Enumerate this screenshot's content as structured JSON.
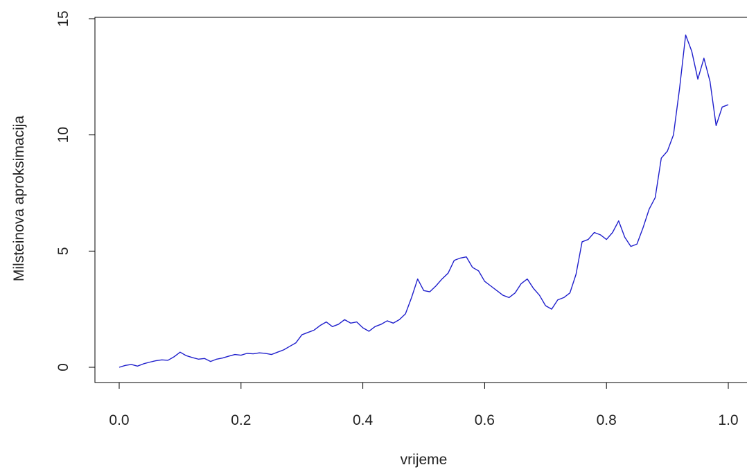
{
  "chart_data": {
    "type": "line",
    "title": "",
    "xlabel": "vrijeme",
    "ylabel": "Milsteinova aproksimacija",
    "xlim": [
      0.0,
      1.0
    ],
    "ylim": [
      0,
      15
    ],
    "xticks": [
      "0.0",
      "0.2",
      "0.4",
      "0.6",
      "0.8",
      "1.0"
    ],
    "yticks": [
      "0",
      "5",
      "10",
      "15"
    ],
    "grid": false,
    "legend": "none",
    "series": [
      {
        "color": "#1f1fcc",
        "x": [
          0.0,
          0.01,
          0.02,
          0.03,
          0.04,
          0.05,
          0.06,
          0.07,
          0.08,
          0.09,
          0.1,
          0.11,
          0.12,
          0.13,
          0.14,
          0.15,
          0.16,
          0.17,
          0.18,
          0.19,
          0.2,
          0.21,
          0.22,
          0.23,
          0.24,
          0.25,
          0.26,
          0.27,
          0.28,
          0.29,
          0.3,
          0.31,
          0.32,
          0.33,
          0.34,
          0.35,
          0.36,
          0.37,
          0.38,
          0.39,
          0.4,
          0.41,
          0.42,
          0.43,
          0.44,
          0.45,
          0.46,
          0.47,
          0.48,
          0.49,
          0.5,
          0.51,
          0.52,
          0.53,
          0.54,
          0.55,
          0.56,
          0.57,
          0.58,
          0.59,
          0.6,
          0.61,
          0.62,
          0.63,
          0.64,
          0.65,
          0.66,
          0.67,
          0.68,
          0.69,
          0.7,
          0.71,
          0.72,
          0.73,
          0.74,
          0.75,
          0.76,
          0.77,
          0.78,
          0.79,
          0.8,
          0.81,
          0.82,
          0.83,
          0.84,
          0.85,
          0.86,
          0.87,
          0.88,
          0.89,
          0.9,
          0.91,
          0.92,
          0.93,
          0.94,
          0.95,
          0.96,
          0.97,
          0.98,
          0.99,
          1.0
        ],
        "values": [
          0.0,
          0.08,
          0.12,
          0.05,
          0.15,
          0.22,
          0.28,
          0.32,
          0.3,
          0.45,
          0.65,
          0.5,
          0.42,
          0.35,
          0.38,
          0.25,
          0.35,
          0.4,
          0.48,
          0.55,
          0.52,
          0.6,
          0.58,
          0.62,
          0.6,
          0.55,
          0.65,
          0.75,
          0.9,
          1.05,
          1.4,
          1.5,
          1.6,
          1.8,
          1.95,
          1.75,
          1.85,
          2.05,
          1.9,
          1.95,
          1.7,
          1.55,
          1.75,
          1.85,
          2.0,
          1.9,
          2.05,
          2.3,
          3.0,
          3.8,
          3.3,
          3.25,
          3.5,
          3.8,
          4.05,
          4.6,
          4.7,
          4.75,
          4.3,
          4.15,
          3.7,
          3.5,
          3.3,
          3.1,
          3.0,
          3.2,
          3.6,
          3.8,
          3.4,
          3.1,
          2.65,
          2.5,
          2.9,
          3.0,
          3.2,
          4.0,
          5.4,
          5.5,
          5.8,
          5.7,
          5.5,
          5.8,
          6.3,
          5.6,
          5.2,
          5.3,
          6.0,
          6.8,
          7.3,
          9.0,
          9.3,
          10.0,
          12.0,
          14.3,
          13.6,
          12.4,
          13.3,
          12.3,
          10.4,
          11.2,
          11.3
        ]
      }
    ]
  }
}
